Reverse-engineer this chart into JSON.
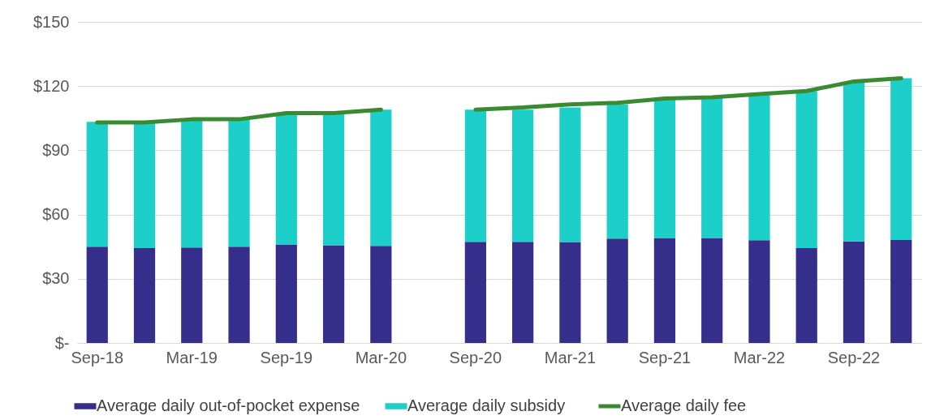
{
  "chart_data": {
    "type": "bar",
    "stacked": true,
    "categories": [
      "Sep-18",
      null,
      "Mar-19",
      null,
      "Sep-19",
      null,
      "Mar-20",
      null,
      "Sep-20",
      null,
      "Mar-21",
      null,
      "Sep-21",
      null,
      "Mar-22",
      null,
      "Sep-22",
      null
    ],
    "series": [
      {
        "name": "Average daily out-of-pocket expense",
        "color": "#352e8a",
        "values": [
          45,
          44.3,
          44.6,
          45,
          46,
          45.6,
          45.4,
          null,
          47.3,
          47.3,
          47.2,
          48.8,
          49.1,
          49.1,
          48,
          44.3,
          47.4,
          48.1
        ]
      },
      {
        "name": "Average daily subsidy",
        "color": "#1dcfc9",
        "values": [
          58.3,
          58.7,
          59.7,
          59.3,
          61,
          61.4,
          63.6,
          null,
          61.7,
          61.7,
          62.8,
          62.7,
          64.7,
          65.3,
          68,
          73.3,
          74.4,
          75.6
        ]
      },
      {
        "name": "Average daily fee",
        "type": "line",
        "color": "#3a8a32",
        "values": [
          103,
          103,
          104.5,
          104.5,
          107.4,
          107.4,
          109,
          null,
          109,
          110,
          111.5,
          112.2,
          114.2,
          114.8,
          116.3,
          117.7,
          122.2,
          123.7
        ]
      }
    ],
    "ylim": [
      0,
      150
    ],
    "yticks": [
      {
        "value": 0,
        "label": "$-"
      },
      {
        "value": 30,
        "label": "$30"
      },
      {
        "value": 60,
        "label": "$60"
      },
      {
        "value": 90,
        "label": "$90"
      },
      {
        "value": 120,
        "label": "$120"
      },
      {
        "value": 150,
        "label": "$150"
      }
    ],
    "grid": "y",
    "legend": "bottom"
  }
}
